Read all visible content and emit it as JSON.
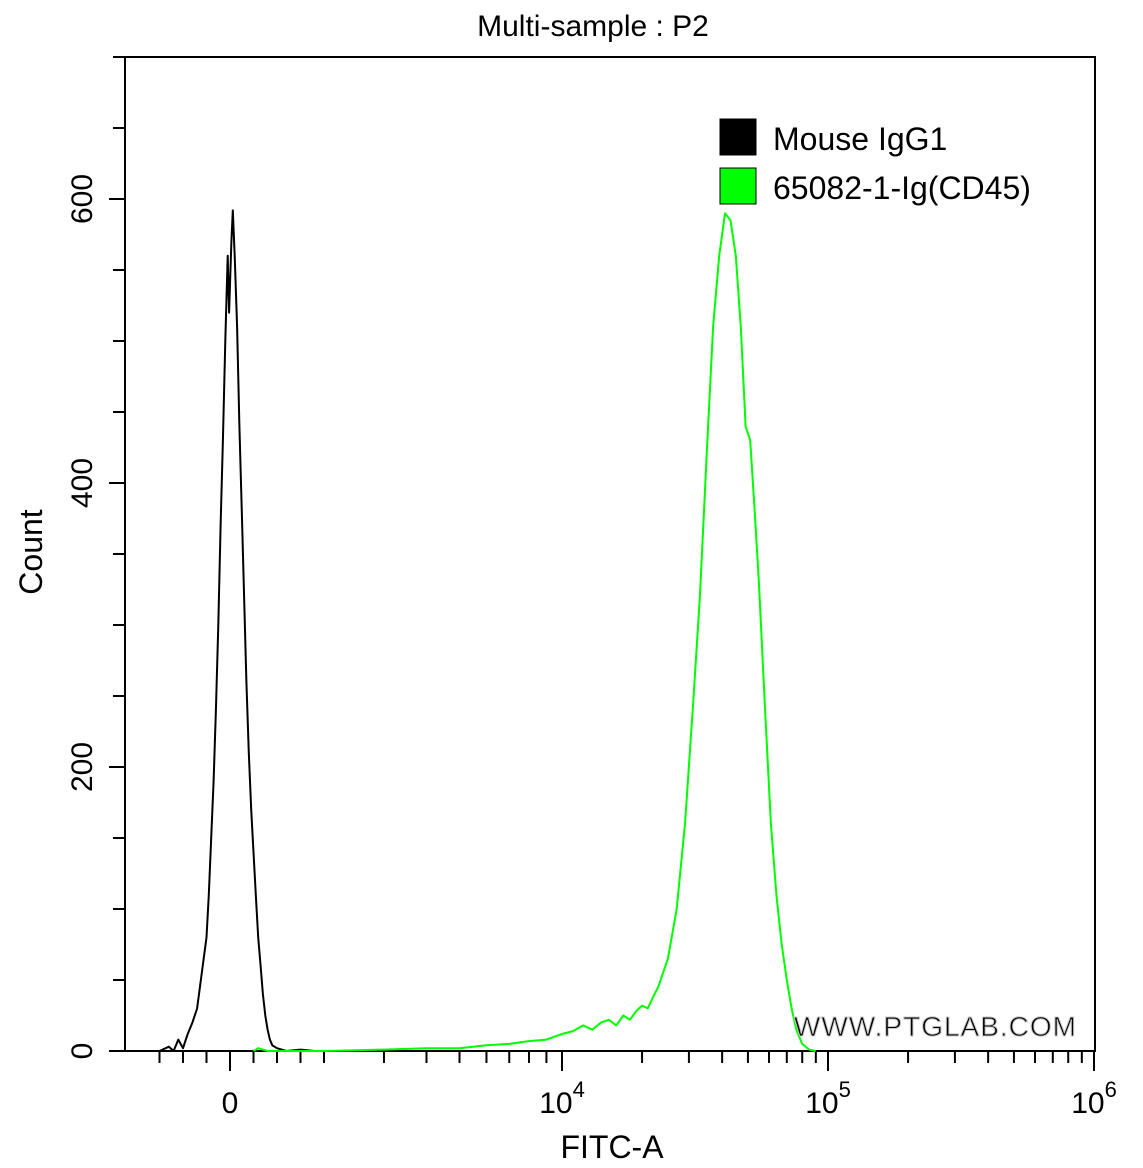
{
  "chart_data": {
    "type": "line",
    "title": "Multi-sample : P2",
    "xlabel": "FITC-A",
    "ylabel": "Count",
    "x_scale": "biexponential",
    "xlim": [
      -1500,
      1000000
    ],
    "ylim": [
      0,
      700
    ],
    "y_ticks": [
      0,
      200,
      400,
      600
    ],
    "x_ticks": [
      {
        "value": 0,
        "base": "0",
        "exp": ""
      },
      {
        "value": 10000,
        "base": "10",
        "exp": "4"
      },
      {
        "value": 100000,
        "base": "10",
        "exp": "5"
      },
      {
        "value": 1000000,
        "base": "10",
        "exp": "6"
      }
    ],
    "grid": false,
    "legend_position": "top-right",
    "watermark": "WWW.PTGLAB.COM",
    "series": [
      {
        "name": "Mouse IgG1",
        "color": "#000000",
        "points": [
          [
            -1500,
            0
          ],
          [
            -1300,
            3
          ],
          [
            -1200,
            0
          ],
          [
            -1100,
            8
          ],
          [
            -1000,
            2
          ],
          [
            -900,
            12
          ],
          [
            -800,
            20
          ],
          [
            -700,
            30
          ],
          [
            -600,
            55
          ],
          [
            -500,
            80
          ],
          [
            -450,
            110
          ],
          [
            -400,
            150
          ],
          [
            -350,
            190
          ],
          [
            -300,
            240
          ],
          [
            -250,
            300
          ],
          [
            -200,
            370
          ],
          [
            -150,
            430
          ],
          [
            -100,
            500
          ],
          [
            -50,
            560
          ],
          [
            -20,
            520
          ],
          [
            0,
            540
          ],
          [
            30,
            570
          ],
          [
            60,
            592
          ],
          [
            100,
            560
          ],
          [
            150,
            510
          ],
          [
            200,
            440
          ],
          [
            250,
            380
          ],
          [
            300,
            320
          ],
          [
            350,
            260
          ],
          [
            400,
            210
          ],
          [
            450,
            170
          ],
          [
            500,
            140
          ],
          [
            550,
            110
          ],
          [
            600,
            80
          ],
          [
            650,
            60
          ],
          [
            700,
            40
          ],
          [
            750,
            25
          ],
          [
            800,
            15
          ],
          [
            850,
            8
          ],
          [
            900,
            4
          ],
          [
            1000,
            2
          ],
          [
            1200,
            0
          ],
          [
            1500,
            1
          ],
          [
            1800,
            0
          ],
          [
            2000,
            0
          ]
        ]
      },
      {
        "name": "65082-1-Ig(CD45)",
        "color": "#00ff00",
        "points": [
          [
            500,
            0
          ],
          [
            600,
            2
          ],
          [
            800,
            0
          ],
          [
            1000,
            0
          ],
          [
            2000,
            0
          ],
          [
            3000,
            1
          ],
          [
            4000,
            2
          ],
          [
            5000,
            2
          ],
          [
            6000,
            4
          ],
          [
            7000,
            5
          ],
          [
            8000,
            7
          ],
          [
            9000,
            8
          ],
          [
            10000,
            12
          ],
          [
            11000,
            14
          ],
          [
            12000,
            18
          ],
          [
            13000,
            15
          ],
          [
            14000,
            20
          ],
          [
            15000,
            22
          ],
          [
            16000,
            18
          ],
          [
            17000,
            25
          ],
          [
            18000,
            22
          ],
          [
            19000,
            28
          ],
          [
            20000,
            32
          ],
          [
            21000,
            30
          ],
          [
            22000,
            38
          ],
          [
            23000,
            45
          ],
          [
            25000,
            65
          ],
          [
            27000,
            100
          ],
          [
            29000,
            160
          ],
          [
            31000,
            240
          ],
          [
            33000,
            320
          ],
          [
            35000,
            420
          ],
          [
            37000,
            510
          ],
          [
            39000,
            560
          ],
          [
            41000,
            590
          ],
          [
            43000,
            585
          ],
          [
            45000,
            560
          ],
          [
            47000,
            510
          ],
          [
            49000,
            440
          ],
          [
            51000,
            430
          ],
          [
            53000,
            380
          ],
          [
            55000,
            330
          ],
          [
            58000,
            240
          ],
          [
            61000,
            160
          ],
          [
            64000,
            110
          ],
          [
            67000,
            75
          ],
          [
            70000,
            50
          ],
          [
            73000,
            30
          ],
          [
            76000,
            15
          ],
          [
            80000,
            5
          ],
          [
            85000,
            1
          ],
          [
            90000,
            0
          ]
        ]
      }
    ]
  }
}
